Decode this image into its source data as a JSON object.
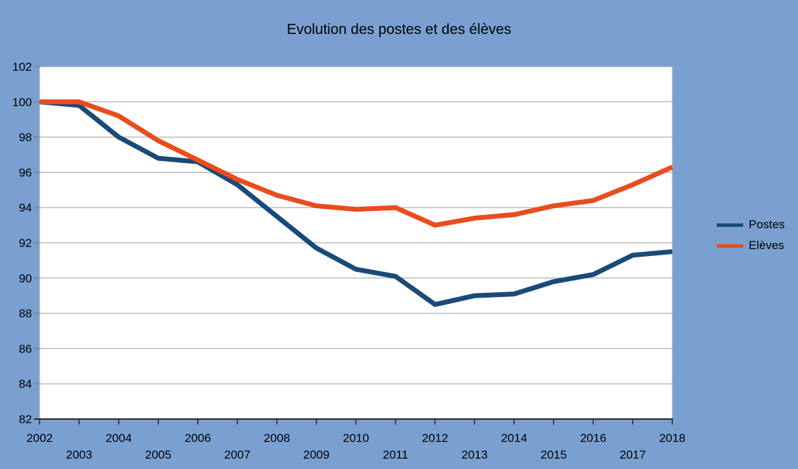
{
  "chart_data": {
    "type": "line",
    "title": "Evolution des postes et des élèves",
    "categories": [
      2002,
      2003,
      2004,
      2005,
      2006,
      2007,
      2008,
      2009,
      2010,
      2011,
      2012,
      2013,
      2014,
      2015,
      2016,
      2017,
      2018
    ],
    "series": [
      {
        "name": "Postes",
        "color": "#1A4A78",
        "values": [
          100,
          99.8,
          98.0,
          96.8,
          96.6,
          95.3,
          93.5,
          91.7,
          90.5,
          90.1,
          88.5,
          89.0,
          89.1,
          89.8,
          90.2,
          91.3,
          91.5
        ]
      },
      {
        "name": "Elèves",
        "color": "#E94C1D",
        "values": [
          100,
          100,
          99.2,
          97.8,
          96.7,
          95.6,
          94.7,
          94.1,
          93.9,
          94.0,
          93.0,
          93.4,
          93.6,
          94.1,
          94.4,
          95.3,
          96.3
        ]
      }
    ],
    "xlabel": "",
    "ylabel": "",
    "ylim": [
      82,
      102
    ],
    "ytick_step": 2,
    "yticks": [
      82,
      84,
      86,
      88,
      90,
      92,
      94,
      96,
      98,
      100,
      102
    ],
    "grid": "horizontal",
    "legend_position": "right",
    "background": "#7AA0D2",
    "plot_background": "#FFFFFF",
    "gridline_color": "#9C9C9C",
    "wall_border_color": "#B3B3B3",
    "axis_color": "#262626",
    "tick_color": "#808080",
    "text_color": "#000000"
  }
}
